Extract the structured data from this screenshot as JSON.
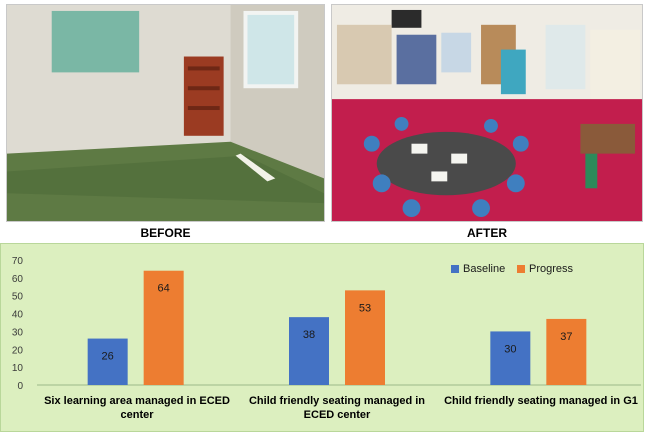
{
  "captions": {
    "before": "BEFORE",
    "after": "AFTER"
  },
  "colors": {
    "baseline": "#4472c4",
    "progress": "#ed7d31",
    "panel": "#dcefbf"
  },
  "chart_data": {
    "type": "bar",
    "categories": [
      "Six learning area managed in ECED center",
      "Child friendly seating managed in ECED center",
      "Child friendly seating managed in G1"
    ],
    "series": [
      {
        "name": "Baseline",
        "values": [
          26,
          38,
          30
        ]
      },
      {
        "name": "Progress",
        "values": [
          64,
          53,
          37
        ]
      }
    ],
    "title": "",
    "xlabel": "",
    "ylabel": "",
    "ylim": [
      0,
      70
    ],
    "yticks": [
      0,
      10,
      20,
      30,
      40,
      50,
      60,
      70
    ],
    "legend": "top-right",
    "grid": false
  }
}
